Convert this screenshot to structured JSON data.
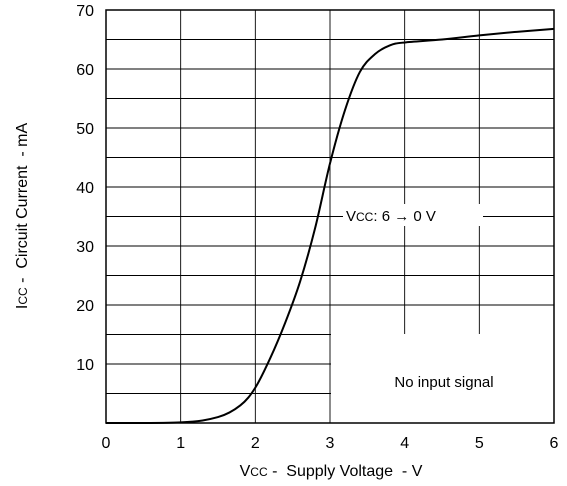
{
  "chart_data": {
    "type": "line",
    "title": "",
    "xlabel": {
      "symbol": "V",
      "subscript": "CC",
      "text": " -  Supply Voltage  - V"
    },
    "ylabel": {
      "symbol": "I",
      "subscript": "CC",
      "text": " -  Circuit Current  - mA"
    },
    "xlim": [
      0,
      6
    ],
    "ylim": [
      0,
      70
    ],
    "x_ticks": [
      "0",
      "1",
      "2",
      "3",
      "4",
      "5",
      "6"
    ],
    "y_ticks": [
      "10",
      "20",
      "30",
      "40",
      "50",
      "60",
      "70"
    ],
    "grid": true,
    "series": [
      {
        "x": [
          0,
          1.0,
          1.5,
          1.8,
          2.0,
          2.2,
          2.4,
          2.6,
          2.8,
          3.0,
          3.2,
          3.4,
          3.6,
          3.8,
          4.0,
          4.5,
          5.0,
          5.5,
          6.0
        ],
        "y": [
          0,
          0.1,
          1,
          3,
          6,
          11,
          17,
          24,
          33,
          44,
          53,
          59.5,
          62.5,
          64,
          64.5,
          65,
          65.7,
          66.3,
          66.8
        ]
      }
    ],
    "annotations": {
      "sweep": {
        "symbol": "V",
        "subscript": "CC",
        "text": ":  6 → 0 V"
      },
      "condition": "No input signal"
    }
  }
}
